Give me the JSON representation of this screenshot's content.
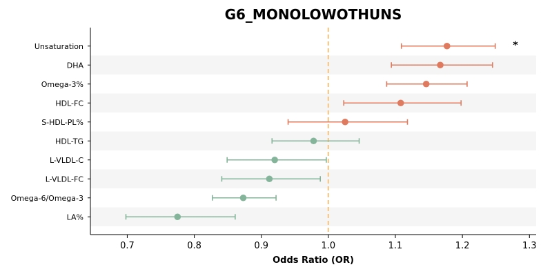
{
  "chart_data": {
    "type": "scatter",
    "subtype": "forest-plot",
    "title": "G6_MONOLOWOTHUNS",
    "xlabel": "Odds Ratio (OR)",
    "ylabel": "",
    "xlim": [
      0.645,
      1.31
    ],
    "xticks": [
      0.7,
      0.8,
      0.9,
      1.0,
      1.1,
      1.2,
      1.3
    ],
    "xtick_labels": [
      "0.7",
      "0.8",
      "0.9",
      "1.0",
      "1.1",
      "1.2",
      "1.3"
    ],
    "reference_line": 1.0,
    "reference_color": "#f7c98a",
    "positive_color": "#df7a5e",
    "negative_color": "#84b59a",
    "band_color": "#f5f5f5",
    "grid": false,
    "items": [
      {
        "label": "Unsaturation",
        "or": 1.177,
        "low": 1.109,
        "high": 1.249,
        "significance": "*"
      },
      {
        "label": "DHA",
        "or": 1.167,
        "low": 1.094,
        "high": 1.245,
        "significance": ""
      },
      {
        "label": "Omega-3%",
        "or": 1.146,
        "low": 1.087,
        "high": 1.207,
        "significance": ""
      },
      {
        "label": "HDL-FC",
        "or": 1.108,
        "low": 1.023,
        "high": 1.198,
        "significance": ""
      },
      {
        "label": "S-HDL-PL%",
        "or": 1.025,
        "low": 0.94,
        "high": 1.118,
        "significance": ""
      },
      {
        "label": "HDL-TG",
        "or": 0.978,
        "low": 0.916,
        "high": 1.046,
        "significance": ""
      },
      {
        "label": "L-VLDL-C",
        "or": 0.92,
        "low": 0.849,
        "high": 0.997,
        "significance": ""
      },
      {
        "label": "L-VLDL-FC",
        "or": 0.912,
        "low": 0.841,
        "high": 0.988,
        "significance": ""
      },
      {
        "label": "Omega-6/Omega-3",
        "or": 0.873,
        "low": 0.827,
        "high": 0.922,
        "significance": ""
      },
      {
        "label": "LA%",
        "or": 0.775,
        "low": 0.698,
        "high": 0.861,
        "significance": ""
      }
    ]
  }
}
